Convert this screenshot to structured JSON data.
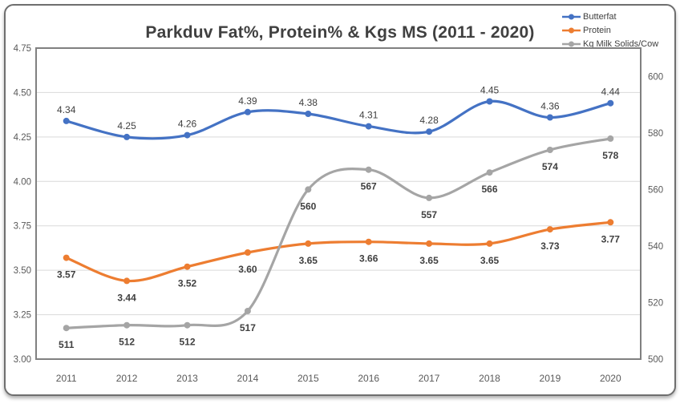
{
  "chart_data": {
    "type": "line",
    "title": "Parkduv Fat%, Protein% & Kgs MS (2011 - 2020)",
    "categories": [
      "2011",
      "2012",
      "2013",
      "2014",
      "2015",
      "2016",
      "2017",
      "2018",
      "2019",
      "2020"
    ],
    "series": [
      {
        "name": "Butterfat",
        "color": "#4472C4",
        "axis": "left",
        "values": [
          4.34,
          4.25,
          4.26,
          4.39,
          4.38,
          4.31,
          4.28,
          4.45,
          4.36,
          4.44
        ],
        "labels": [
          "4.34",
          "4.25",
          "4.26",
          "4.39",
          "4.38",
          "4.31",
          "4.28",
          "4.45",
          "4.36",
          "4.44"
        ],
        "label_position": "above",
        "label_weight": "normal"
      },
      {
        "name": "Protein",
        "color": "#ED7D31",
        "axis": "left",
        "values": [
          3.57,
          3.44,
          3.52,
          3.6,
          3.65,
          3.66,
          3.65,
          3.65,
          3.73,
          3.77
        ],
        "labels": [
          "3.57",
          "3.44",
          "3.52",
          "3.60",
          "3.65",
          "3.66",
          "3.65",
          "3.65",
          "3.73",
          "3.77"
        ],
        "label_position": "below",
        "label_weight": "bold"
      },
      {
        "name": "Kg Milk Solids/Cow",
        "color": "#A5A5A5",
        "axis": "right",
        "values": [
          511,
          512,
          512,
          517,
          560,
          567,
          557,
          566,
          574,
          578
        ],
        "labels": [
          "511",
          "512",
          "512",
          "517",
          "560",
          "567",
          "557",
          "566",
          "574",
          "578"
        ],
        "label_position": "below",
        "label_weight": "bold"
      }
    ],
    "left_axis": {
      "min": 3.0,
      "max": 4.75,
      "tick_step": 0.25,
      "ticks": [
        "4.75",
        "4.50",
        "4.25",
        "4.00",
        "3.75",
        "3.50",
        "3.25",
        "3.00"
      ]
    },
    "right_axis": {
      "min": 500,
      "max": 610,
      "tick_step": 20,
      "ticks": [
        "600",
        "580",
        "560",
        "540",
        "520",
        "500"
      ]
    },
    "legend_position": "top-right",
    "grid": true,
    "smooth": true,
    "colors": {
      "grid_line": "#D9D9D9",
      "plot_border": "#808080",
      "tick_text": "#595959",
      "data_label_text": "#404040",
      "title_text": "#404040"
    }
  }
}
